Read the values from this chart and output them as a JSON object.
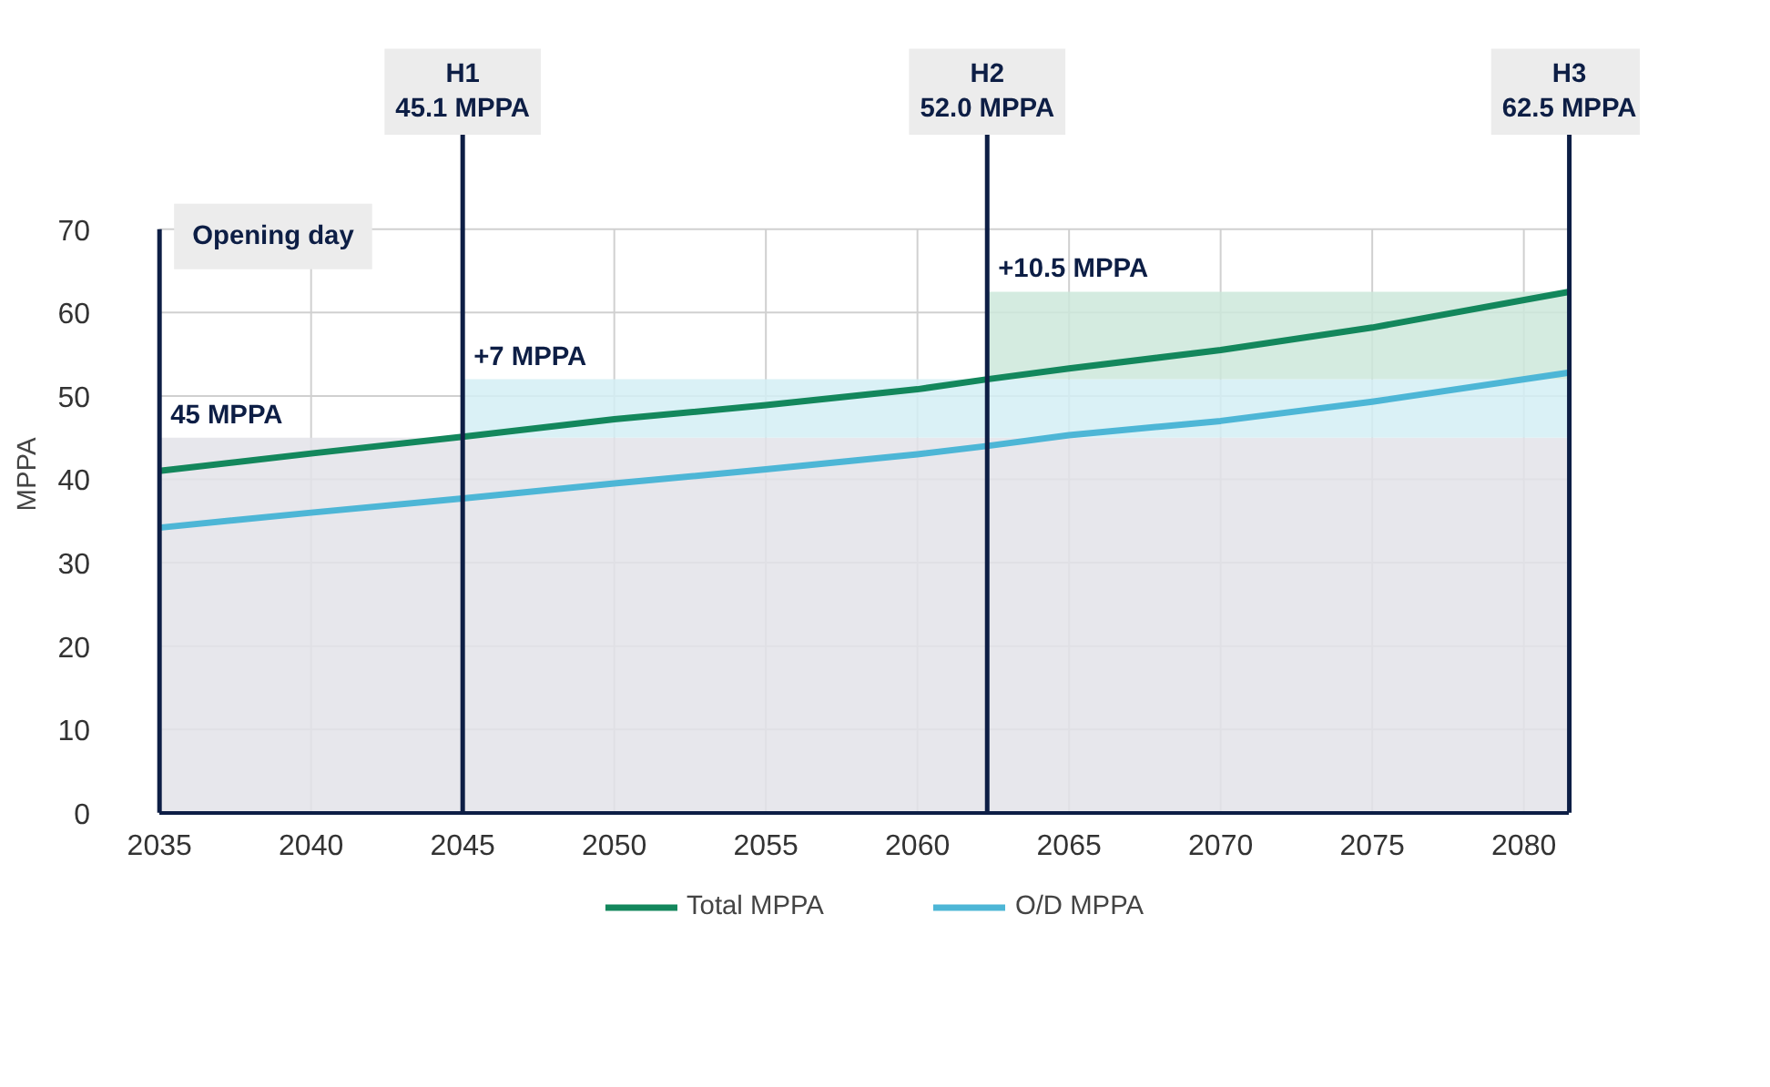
{
  "chart_data": {
    "type": "line",
    "ylabel": "MPPA",
    "xlim": [
      2035,
      2081.5
    ],
    "ylim": [
      0,
      70
    ],
    "xticks": [
      2035,
      2040,
      2045,
      2050,
      2055,
      2060,
      2065,
      2070,
      2075,
      2080
    ],
    "yticks": [
      0,
      10,
      20,
      30,
      40,
      50,
      60,
      70
    ],
    "grid": true,
    "legend": "bottom",
    "series": [
      {
        "name": "Total MPPA",
        "color": "#13875c",
        "x": [
          2035,
          2040,
          2045,
          2050,
          2055,
          2060,
          2062.3,
          2065,
          2070,
          2075,
          2081.5
        ],
        "values": [
          41.0,
          43.1,
          45.1,
          47.2,
          48.9,
          50.8,
          52.0,
          53.3,
          55.5,
          58.2,
          62.5
        ]
      },
      {
        "name": "O/D MPPA",
        "color": "#4db6d6",
        "x": [
          2035,
          2040,
          2045,
          2050,
          2055,
          2060,
          2062.3,
          2065,
          2070,
          2075,
          2081.5
        ],
        "values": [
          34.2,
          36.0,
          37.7,
          39.5,
          41.2,
          43.0,
          44.0,
          45.3,
          47.0,
          49.3,
          52.8
        ]
      }
    ],
    "ref_lines": [
      {
        "axis": "x",
        "value": 2035,
        "label": "Opening day",
        "color": "#0d1e45"
      },
      {
        "axis": "x",
        "value": 2045,
        "label": "H1\n45.1 MPPA",
        "color": "#0d1e45"
      },
      {
        "axis": "x",
        "value": 2062.3,
        "label": "H2\n52.0 MPPA",
        "color": "#0d1e45"
      },
      {
        "axis": "x",
        "value": 2081.5,
        "label": "H3\n62.5 MPPA",
        "color": "#0d1e45"
      }
    ],
    "bands": [
      {
        "axis": "y",
        "from": 0,
        "to": 45,
        "label": "45 MPPA",
        "color": "#e3e3e9"
      },
      {
        "axis": "y",
        "from": 45,
        "to": 52,
        "label": "+7 MPPA",
        "color": "#d3eef5"
      },
      {
        "axis": "y",
        "from": 52,
        "to": 62.5,
        "label": "+10.5 MPPA",
        "color": "#cde8da"
      }
    ]
  }
}
